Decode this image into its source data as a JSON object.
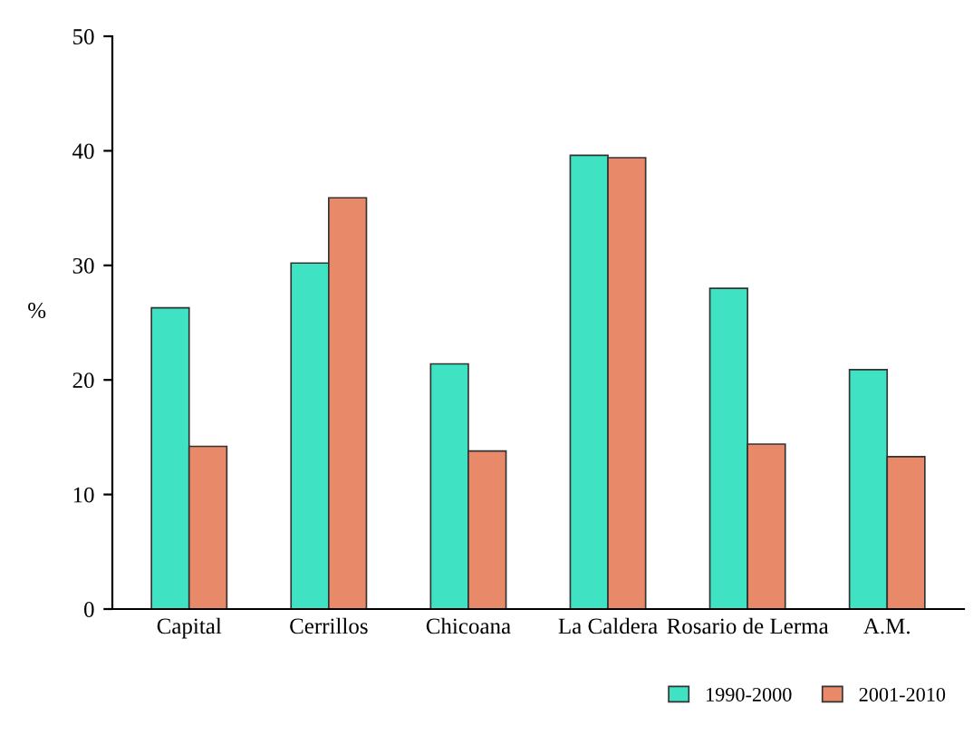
{
  "chart_data": {
    "type": "bar",
    "ylabel": "%",
    "categories": [
      "Capital",
      "Cerrillos",
      "Chicoana",
      "La Caldera",
      "Rosario de Lerma",
      "A.M."
    ],
    "series": [
      {
        "name": "1990-2000",
        "color": "#3fe3c3",
        "values": [
          26.3,
          30.2,
          21.4,
          39.6,
          28.0,
          20.9
        ]
      },
      {
        "name": "2001-2010",
        "color": "#e8896a",
        "values": [
          14.2,
          35.9,
          13.8,
          39.4,
          14.4,
          13.3
        ]
      }
    ],
    "ylim": [
      0,
      50
    ],
    "yticks": [
      0,
      10,
      20,
      30,
      40,
      50
    ],
    "grid": false,
    "legend": "bottom right"
  }
}
